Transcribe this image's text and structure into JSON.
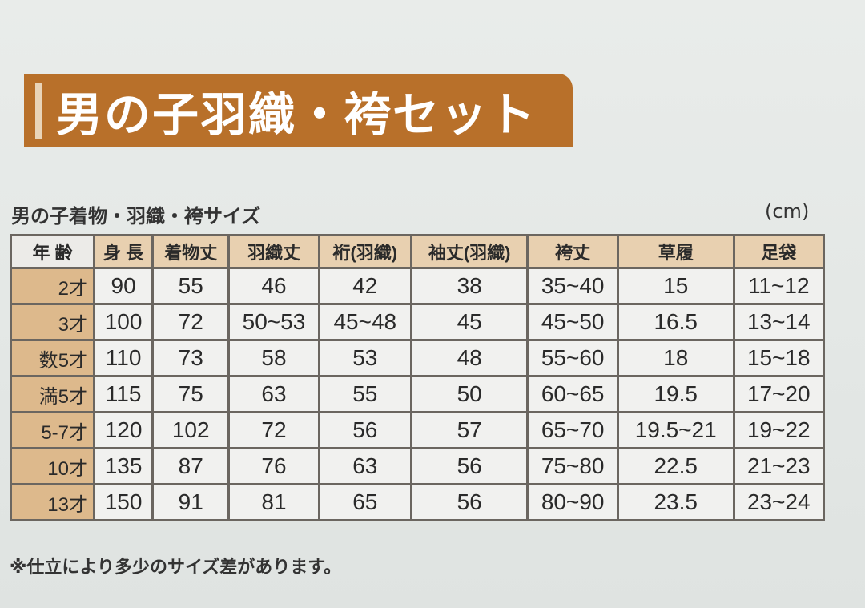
{
  "banner": {
    "title": "男の子羽織・袴セット"
  },
  "subtitle": "男の子着物・羽織・袴サイズ",
  "unit": "(cm)",
  "table": {
    "headers": [
      "年 齢",
      "身 長",
      "着物丈",
      "羽織丈",
      "裄(羽織)",
      "袖丈(羽織)",
      "袴丈",
      "草履",
      "足袋"
    ],
    "rows": [
      [
        "2才",
        "90",
        "55",
        "46",
        "42",
        "38",
        "35~40",
        "15",
        "11~12"
      ],
      [
        "3才",
        "100",
        "72",
        "50~53",
        "45~48",
        "45",
        "45~50",
        "16.5",
        "13~14"
      ],
      [
        "数5才",
        "110",
        "73",
        "58",
        "53",
        "48",
        "55~60",
        "18",
        "15~18"
      ],
      [
        "満5才",
        "115",
        "75",
        "63",
        "55",
        "50",
        "60~65",
        "19.5",
        "17~20"
      ],
      [
        "5-7才",
        "120",
        "102",
        "72",
        "56",
        "57",
        "65~70",
        "19.5~21",
        "19~22"
      ],
      [
        "10才",
        "135",
        "87",
        "76",
        "63",
        "56",
        "75~80",
        "22.5",
        "21~23"
      ],
      [
        "13才",
        "150",
        "91",
        "81",
        "65",
        "56",
        "80~90",
        "23.5",
        "23~24"
      ]
    ]
  },
  "note": "※仕立により多少のサイズ差があります。"
}
